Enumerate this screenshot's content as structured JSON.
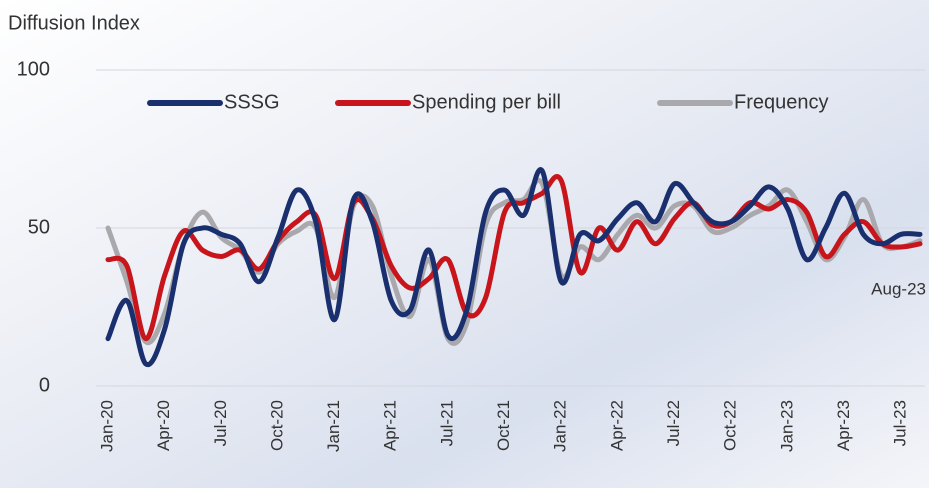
{
  "chart_data": {
    "type": "line",
    "y_label": "Diffusion Index",
    "categories": [
      "Jan-20",
      null,
      null,
      "Apr-20",
      null,
      null,
      "Jul-20",
      null,
      null,
      "Oct-20",
      null,
      null,
      "Jan-21",
      null,
      null,
      "Apr-21",
      null,
      null,
      "Jul-21",
      null,
      null,
      "Oct-21",
      null,
      null,
      "Jan-22",
      null,
      null,
      "Apr-22",
      null,
      null,
      "Jul-22",
      null,
      null,
      "Oct-22",
      null,
      null,
      "Jan-23",
      null,
      null,
      "Apr-23",
      null,
      null,
      "Jul-23",
      null
    ],
    "series": [
      {
        "name": "SSSG",
        "color": "#1a2f6e",
        "values": [
          15,
          27,
          7,
          18,
          45,
          50,
          48,
          45,
          33,
          47,
          62,
          52,
          21,
          59,
          52,
          27,
          24,
          43,
          16,
          24,
          55,
          62,
          54,
          68,
          33,
          48,
          46,
          53,
          58,
          52,
          64,
          58,
          52,
          52,
          57,
          63,
          56,
          40,
          50,
          61,
          48,
          45,
          48,
          48
        ]
      },
      {
        "name": "Spending per bill",
        "color": "#c8151b",
        "values": [
          40,
          38,
          15,
          35,
          49,
          43,
          41,
          43,
          37,
          46,
          52,
          54,
          34,
          58,
          53,
          38,
          31,
          34,
          40,
          23,
          28,
          55,
          58,
          61,
          65,
          36,
          50,
          43,
          52,
          45,
          53,
          58,
          51,
          52,
          58,
          56,
          59,
          55,
          41,
          48,
          52,
          45,
          44,
          45
        ]
      },
      {
        "name": "Frequency",
        "color": "#a9a9ad",
        "values": [
          50,
          33,
          14,
          23,
          45,
          55,
          47,
          43,
          36,
          45,
          49,
          50,
          28,
          57,
          57,
          35,
          22,
          40,
          15,
          20,
          51,
          58,
          59,
          64,
          35,
          44,
          40,
          48,
          54,
          50,
          57,
          57,
          49,
          50,
          54,
          57,
          62,
          52,
          40,
          47,
          59,
          45,
          44,
          46
        ]
      }
    ],
    "ylim": [
      0,
      100
    ],
    "yticks": [
      0,
      50,
      100
    ],
    "grid": true,
    "annotations": [
      {
        "text": "Aug-23"
      }
    ]
  }
}
